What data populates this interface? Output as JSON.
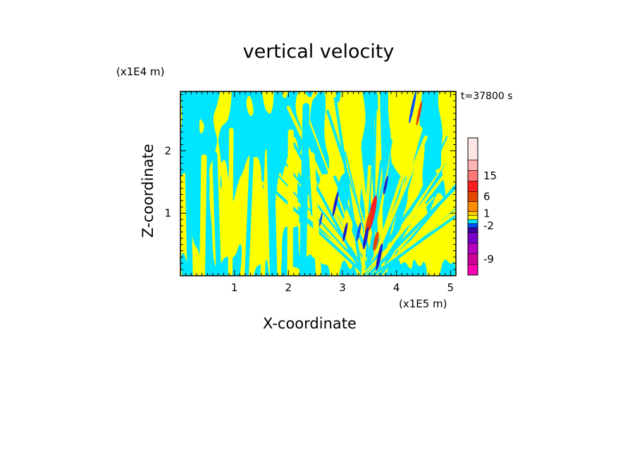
{
  "chart_data": {
    "type": "heatmap",
    "title": "vertical velocity",
    "xlabel": "X-coordinate",
    "ylabel": "Z-coordinate",
    "x_unit": "(x1E5 m)",
    "y_unit": "(x1E4 m)",
    "time_label": "t=37800 s",
    "xlim": [
      0,
      5.1
    ],
    "ylim": [
      0,
      2.95
    ],
    "x_ticks": [
      {
        "value": 1,
        "label": "1"
      },
      {
        "value": 2,
        "label": "2"
      },
      {
        "value": 3,
        "label": "3"
      },
      {
        "value": 4,
        "label": "4"
      },
      {
        "value": 5,
        "label": "5"
      }
    ],
    "y_ticks": [
      {
        "value": 1,
        "label": "1"
      },
      {
        "value": 2,
        "label": "2"
      }
    ],
    "colorbar": {
      "levels": [
        {
          "color": "#ff00b4"
        },
        {
          "color": "#d2009b"
        },
        {
          "color": "#b400be"
        },
        {
          "color": "#7800c8"
        },
        {
          "color": "#3c00a0"
        },
        {
          "color": "#0050ff"
        },
        {
          "color": "#00e6ff"
        },
        {
          "color": "#ffff00"
        },
        {
          "color": "#ffc800"
        },
        {
          "color": "#ff8c00"
        },
        {
          "color": "#e64600"
        },
        {
          "color": "#ff1e1e"
        },
        {
          "color": "#ff7878"
        },
        {
          "color": "#ffb4b4"
        },
        {
          "color": "#ffe6e6"
        }
      ],
      "labels": [
        {
          "label": "-9",
          "level_index": 1
        },
        {
          "label": "-2",
          "level_index": 5
        },
        {
          "label": "1",
          "level_index": 8
        },
        {
          "label": "6",
          "level_index": 10
        },
        {
          "label": "15",
          "level_index": 12
        }
      ]
    },
    "field_colors": {
      "positive": "#ffff00",
      "negative": "#00e6ff",
      "strong_up": "#ff1e1e",
      "moderate_up": "#e64600",
      "strong_down": "#1e1ed2",
      "moderate_down": "#0050ff"
    }
  }
}
